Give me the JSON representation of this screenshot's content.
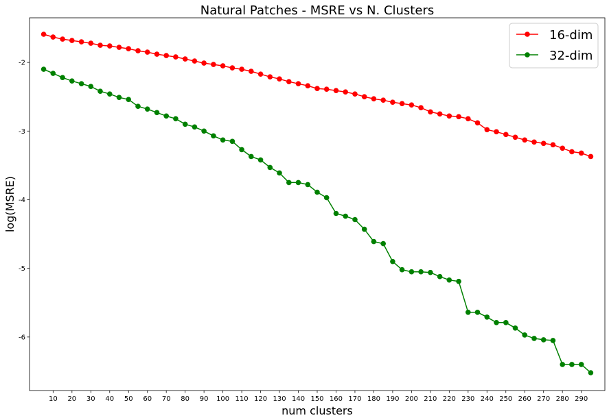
{
  "chart_data": {
    "type": "line",
    "title": "Natural Patches - MSRE vs N. Clusters",
    "xlabel": "num clusters",
    "ylabel": "log(MSRE)",
    "xlim": [
      -2.5,
      302.5
    ],
    "ylim": [
      -6.78,
      -1.35
    ],
    "x_ticks": [
      10,
      20,
      30,
      40,
      50,
      60,
      70,
      80,
      90,
      100,
      110,
      120,
      130,
      140,
      150,
      160,
      170,
      180,
      190,
      200,
      210,
      220,
      230,
      240,
      250,
      260,
      270,
      280,
      290
    ],
    "y_ticks": [
      -2,
      -3,
      -4,
      -5,
      -6
    ],
    "grid": false,
    "legend_position": "top-right",
    "x": [
      5,
      10,
      15,
      20,
      25,
      30,
      35,
      40,
      45,
      50,
      55,
      60,
      65,
      70,
      75,
      80,
      85,
      90,
      95,
      100,
      105,
      110,
      115,
      120,
      125,
      130,
      135,
      140,
      145,
      150,
      155,
      160,
      165,
      170,
      175,
      180,
      185,
      190,
      195,
      200,
      205,
      210,
      215,
      220,
      225,
      230,
      235,
      240,
      245,
      250,
      255,
      260,
      265,
      270,
      275,
      280,
      285,
      290,
      295
    ],
    "series": [
      {
        "name": "16-dim",
        "color": "#ff0000",
        "values": [
          -1.59,
          -1.63,
          -1.66,
          -1.68,
          -1.7,
          -1.72,
          -1.75,
          -1.76,
          -1.78,
          -1.8,
          -1.83,
          -1.85,
          -1.88,
          -1.9,
          -1.92,
          -1.95,
          -1.98,
          -2.01,
          -2.03,
          -2.05,
          -2.08,
          -2.1,
          -2.13,
          -2.17,
          -2.21,
          -2.24,
          -2.28,
          -2.31,
          -2.34,
          -2.38,
          -2.39,
          -2.41,
          -2.43,
          -2.46,
          -2.5,
          -2.53,
          -2.55,
          -2.58,
          -2.6,
          -2.62,
          -2.66,
          -2.72,
          -2.75,
          -2.78,
          -2.79,
          -2.82,
          -2.88,
          -2.98,
          -3.01,
          -3.05,
          -3.09,
          -3.13,
          -3.16,
          -3.18,
          -3.2,
          -3.25,
          -3.3,
          -3.32,
          -3.37
        ]
      },
      {
        "name": "32-dim",
        "color": "#008000",
        "values": [
          -2.1,
          -2.16,
          -2.22,
          -2.27,
          -2.31,
          -2.35,
          -2.42,
          -2.46,
          -2.51,
          -2.54,
          -2.64,
          -2.68,
          -2.73,
          -2.78,
          -2.82,
          -2.9,
          -2.94,
          -3.0,
          -3.07,
          -3.13,
          -3.15,
          -3.27,
          -3.37,
          -3.42,
          -3.53,
          -3.61,
          -3.75,
          -3.75,
          -3.78,
          -3.89,
          -3.97,
          -4.2,
          -4.24,
          -4.29,
          -4.43,
          -4.61,
          -4.64,
          -4.9,
          -5.02,
          -5.05,
          -5.05,
          -5.06,
          -5.12,
          -5.17,
          -5.19,
          -5.64,
          -5.64,
          -5.71,
          -5.79,
          -5.79,
          -5.87,
          -5.97,
          -6.02,
          -6.04,
          -6.05,
          -6.4,
          -6.4,
          -6.4,
          -6.52
        ]
      }
    ]
  }
}
